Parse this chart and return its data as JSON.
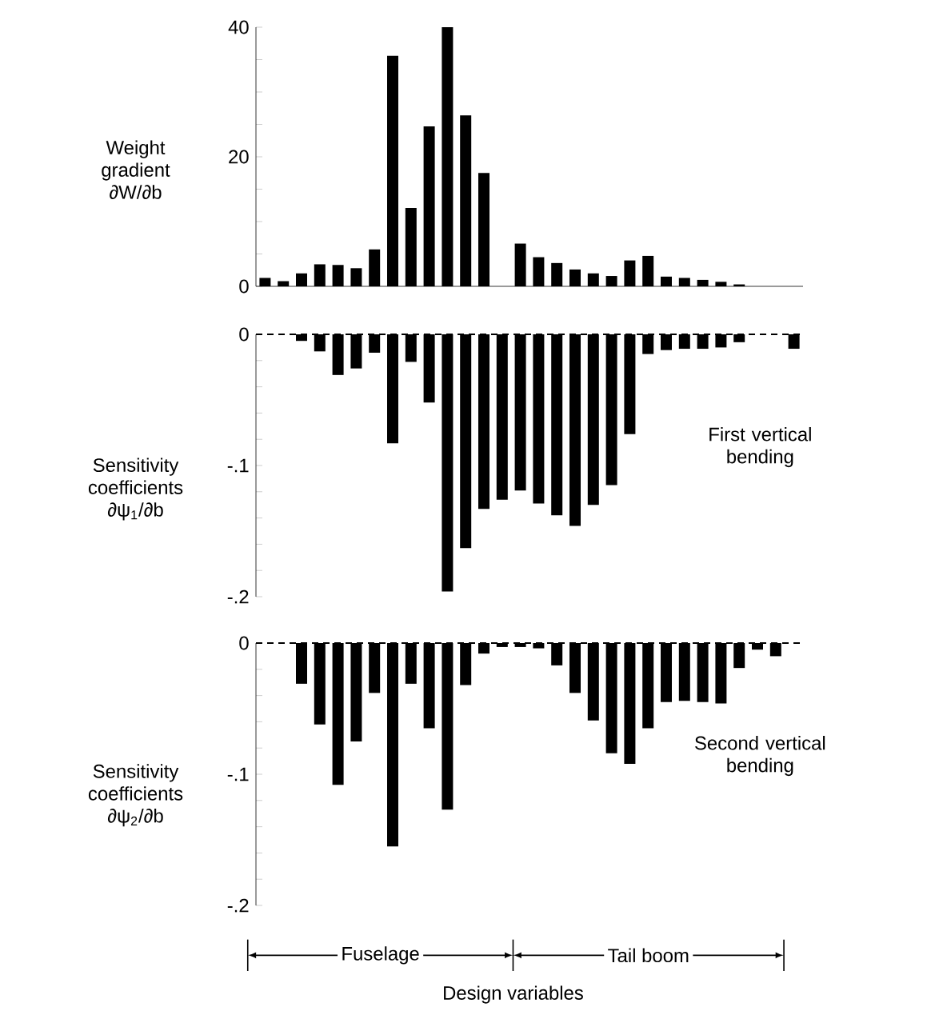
{
  "chart_data": [
    {
      "type": "bar",
      "ylabel": "Weight gradient ∂W/∂b",
      "categories": [
        null,
        null,
        null,
        null,
        null,
        null,
        null,
        null,
        null,
        null,
        null,
        null,
        null,
        null,
        null,
        null,
        null,
        null,
        null,
        null,
        null,
        null,
        null,
        null,
        null,
        null,
        null,
        null,
        null,
        null
      ],
      "values": [
        1.3,
        0.8,
        2.0,
        3.4,
        3.3,
        2.8,
        5.7,
        35.6,
        12.1,
        24.7,
        40,
        26.4,
        17.5,
        0,
        6.6,
        4.5,
        3.6,
        2.6,
        2.0,
        1.6,
        4.0,
        4.7,
        1.5,
        1.3,
        1.0,
        0.7,
        0.3,
        0,
        0,
        0
      ],
      "color": "#000000",
      "ylim": [
        0,
        40
      ],
      "yticks": [
        0,
        {
          "value": 5,
          "label": null
        },
        {
          "value": 10,
          "label": null
        },
        {
          "value": 15,
          "label": null
        },
        20,
        {
          "value": 25,
          "label": null
        },
        {
          "value": 30,
          "label": null
        },
        {
          "value": 35,
          "label": null
        },
        40
      ],
      "tick_labels": "y"
    },
    {
      "type": "bar",
      "ylabel": "Sensitivity coefficients ∂ψ$_{1}$/∂b",
      "categories": [
        null,
        null,
        null,
        null,
        null,
        null,
        null,
        null,
        null,
        null,
        null,
        null,
        null,
        null,
        null,
        null,
        null,
        null,
        null,
        null,
        null,
        null,
        null,
        null,
        null,
        null,
        null,
        null,
        null,
        null
      ],
      "values": [
        0,
        0,
        -0.005,
        -0.013,
        -0.031,
        -0.026,
        -0.014,
        -0.083,
        -0.021,
        -0.052,
        -0.196,
        -0.163,
        -0.133,
        -0.126,
        -0.119,
        -0.129,
        -0.138,
        -0.146,
        -0.13,
        -0.115,
        -0.076,
        -0.015,
        -0.012,
        -0.011,
        -0.011,
        -0.01,
        -0.006,
        0,
        0,
        -0.011
      ],
      "color": "#000000",
      "ylim": [
        -0.2,
        0
      ],
      "yticks": [
        {
          "value": -0.2,
          "label": "-.2"
        },
        {
          "value": -0.18,
          "label": null
        },
        {
          "value": -0.16,
          "label": null
        },
        {
          "value": -0.14,
          "label": null
        },
        {
          "value": -0.12,
          "label": null
        },
        {
          "value": -0.1,
          "label": "-.1"
        },
        {
          "value": -0.08,
          "label": null
        },
        {
          "value": -0.06,
          "label": null
        },
        {
          "value": -0.04,
          "label": null
        },
        {
          "value": -0.02,
          "label": null
        },
        0
      ],
      "ref_lines": [
        {
          "axis": "y",
          "value": 0,
          "color": "#000000",
          "line_style": "dashed"
        }
      ],
      "annotations": [
        "First vertical bending"
      ],
      "tick_labels": "y"
    },
    {
      "type": "bar",
      "ylabel": "Sensitivity coefficients ∂ψ$_{2}$/∂b",
      "xlabel": "Design variables",
      "categories": [
        null,
        null,
        null,
        null,
        null,
        null,
        null,
        null,
        null,
        null,
        null,
        null,
        null,
        null,
        null,
        null,
        null,
        null,
        null,
        null,
        null,
        null,
        null,
        null,
        null,
        null,
        null,
        null,
        null,
        null
      ],
      "values": [
        0,
        0,
        -0.031,
        -0.062,
        -0.108,
        -0.075,
        -0.038,
        -0.155,
        -0.031,
        -0.065,
        -0.127,
        -0.032,
        -0.008,
        -0.003,
        -0.003,
        -0.004,
        -0.017,
        -0.038,
        -0.059,
        -0.084,
        -0.092,
        -0.065,
        -0.045,
        -0.044,
        -0.045,
        -0.046,
        -0.019,
        -0.005,
        -0.01,
        0
      ],
      "color": "#000000",
      "ylim": [
        -0.2,
        0
      ],
      "yticks": [
        {
          "value": -0.2,
          "label": "-.2"
        },
        {
          "value": -0.18,
          "label": null
        },
        {
          "value": -0.16,
          "label": null
        },
        {
          "value": -0.14,
          "label": null
        },
        {
          "value": -0.12,
          "label": null
        },
        {
          "value": -0.1,
          "label": "-.1"
        },
        {
          "value": -0.08,
          "label": null
        },
        {
          "value": -0.06,
          "label": null
        },
        {
          "value": -0.04,
          "label": null
        },
        {
          "value": -0.02,
          "label": null
        },
        0
      ],
      "ref_lines": [
        {
          "axis": "y",
          "value": 0,
          "color": "#000000",
          "line_style": "dashed"
        }
      ],
      "annotations": [
        "Second vertical bending",
        "Fuselage",
        "Tail boom"
      ],
      "tick_labels": "y"
    }
  ]
}
